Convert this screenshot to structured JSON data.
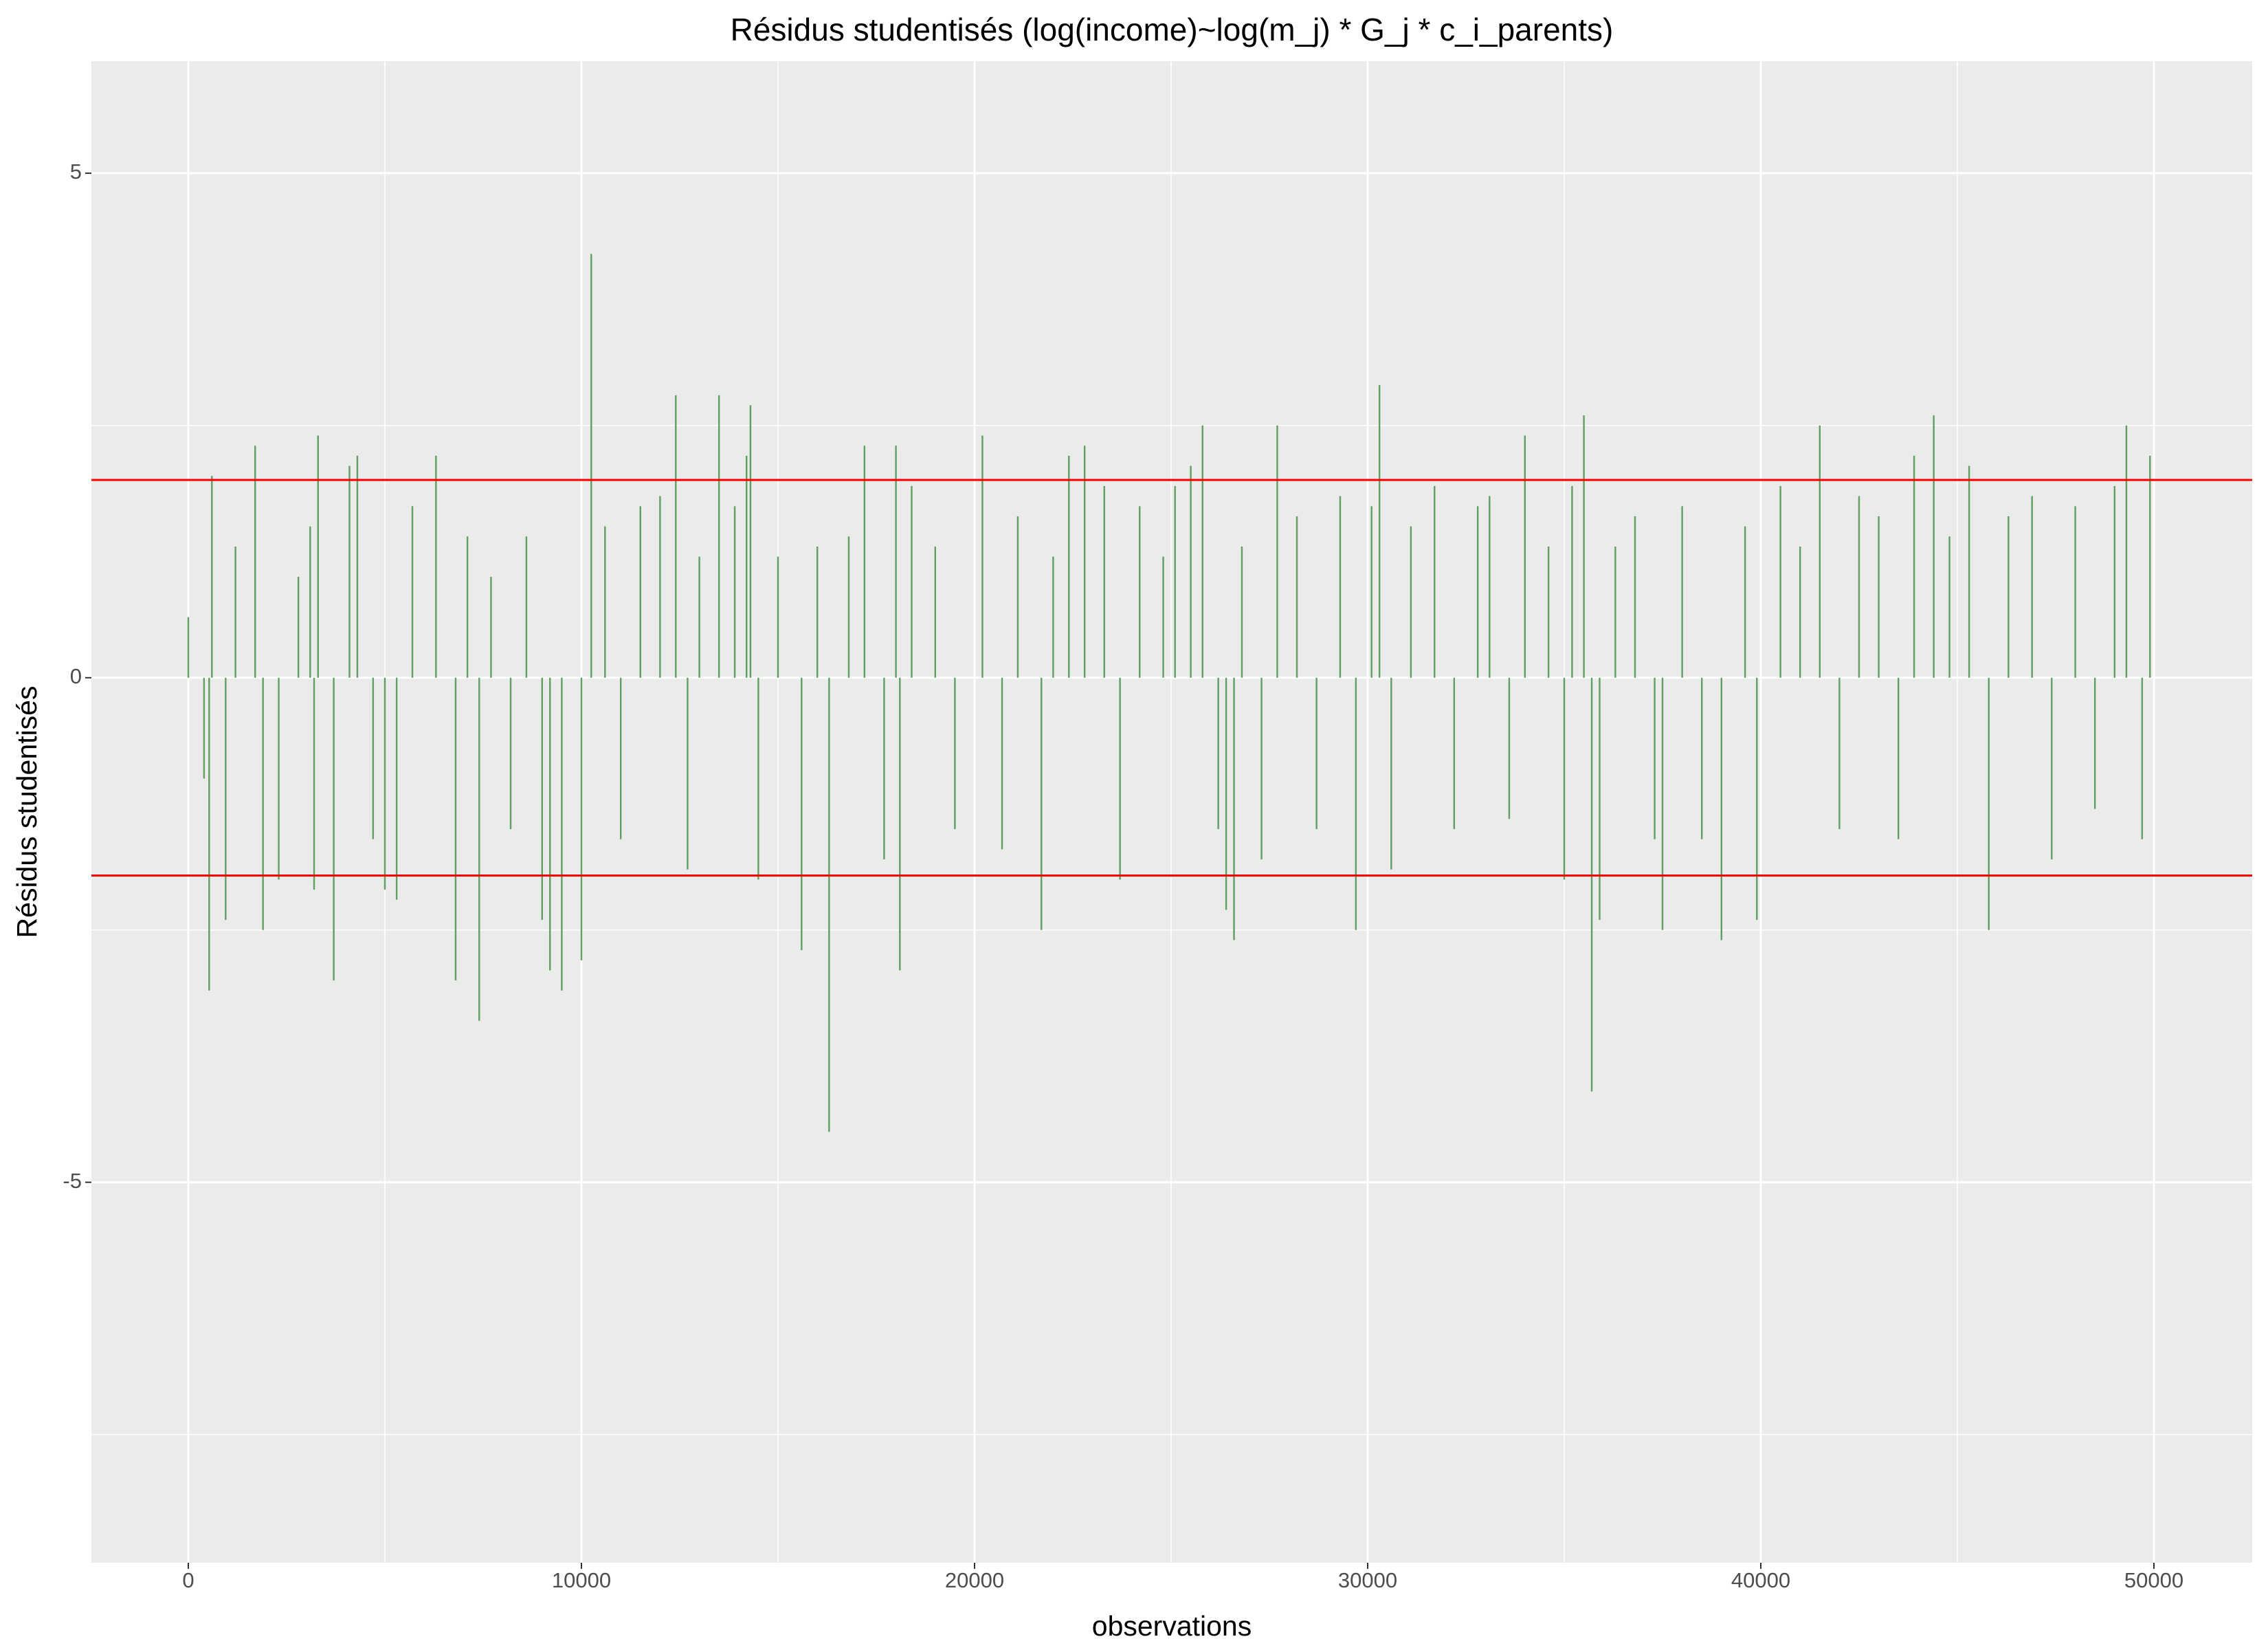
{
  "chart_data": {
    "type": "bar",
    "title": "Résidus studentisés (log(income)~log(m_j) * G_j * c_i_parents)",
    "x_label": "observations",
    "y_label": "Résidus studentisés",
    "color": "#5f9f5f",
    "x": [
      0,
      400,
      530,
      600,
      950,
      1200,
      1700,
      1900,
      2300,
      2800,
      3100,
      3200,
      3300,
      3700,
      4100,
      4300,
      4700,
      5000,
      5300,
      5700,
      6300,
      6800,
      7100,
      7400,
      7700,
      8200,
      8600,
      9000,
      9200,
      9500,
      10000,
      10250,
      10600,
      11000,
      11500,
      12000,
      12400,
      12700,
      13000,
      13500,
      13900,
      14200,
      14300,
      14500,
      15000,
      15600,
      16000,
      16300,
      16800,
      17200,
      17700,
      18000,
      18100,
      18400,
      19000,
      19500,
      20200,
      20700,
      21100,
      21700,
      22000,
      22400,
      22800,
      23300,
      23700,
      24200,
      24800,
      25100,
      25500,
      25800,
      26200,
      26400,
      26600,
      26800,
      27300,
      27700,
      28200,
      28700,
      29300,
      29700,
      30100,
      30300,
      30600,
      31100,
      31700,
      32200,
      32800,
      33100,
      33600,
      34000,
      34600,
      35000,
      35200,
      35500,
      35700,
      35900,
      36300,
      36800,
      37300,
      37500,
      38000,
      38500,
      39000,
      39600,
      39900,
      40500,
      41000,
      41500,
      42000,
      42500,
      43000,
      43500,
      43900,
      44400,
      44800,
      45300,
      45800,
      46300,
      46900,
      47400,
      48000,
      48500,
      49000,
      49300,
      49700,
      49900
    ],
    "values": [
      0.6,
      -1.0,
      -3.1,
      2.0,
      -2.4,
      1.3,
      2.3,
      -2.5,
      -2.0,
      1.0,
      1.5,
      -2.1,
      2.4,
      -3.0,
      2.1,
      2.2,
      -1.6,
      -2.1,
      -2.2,
      1.7,
      2.2,
      -3.0,
      1.4,
      -3.4,
      1.0,
      -1.5,
      1.4,
      -2.4,
      -2.9,
      -3.1,
      -2.8,
      4.2,
      1.5,
      -1.6,
      1.7,
      1.8,
      2.8,
      -1.9,
      1.2,
      2.8,
      1.7,
      2.2,
      2.7,
      -2.0,
      1.2,
      -2.7,
      1.3,
      -4.5,
      1.4,
      2.3,
      -1.8,
      2.3,
      -2.9,
      1.9,
      1.3,
      -1.5,
      2.4,
      -1.7,
      1.6,
      -2.5,
      1.2,
      2.2,
      2.3,
      1.9,
      -2.0,
      1.7,
      1.2,
      1.9,
      2.1,
      2.5,
      -1.5,
      -2.3,
      -2.6,
      1.3,
      -1.8,
      2.5,
      1.6,
      -1.5,
      1.8,
      -2.5,
      1.7,
      2.9,
      -1.9,
      1.5,
      1.9,
      -1.5,
      1.7,
      1.8,
      -1.4,
      2.4,
      1.3,
      -2.0,
      1.9,
      2.6,
      -4.1,
      -2.4,
      1.3,
      1.6,
      -1.6,
      -2.5,
      1.7,
      -1.6,
      -2.6,
      1.5,
      -2.4,
      1.9,
      1.3,
      2.5,
      -1.5,
      1.8,
      1.6,
      -1.6,
      2.2,
      2.6,
      1.4,
      2.1,
      -2.5,
      1.6,
      1.8,
      -1.8,
      1.7,
      -1.3,
      1.9,
      2.5,
      -1.6,
      2.2
    ],
    "hlines": [
      {
        "value": 1.96,
        "color": "#ff0000"
      },
      {
        "value": -1.96,
        "color": "#ff0000"
      }
    ],
    "xlim": [
      -2465,
      52500
    ],
    "xticks": [
      0,
      10000,
      20000,
      30000,
      40000,
      50000
    ],
    "xminor": [
      5000,
      15000,
      25000,
      35000,
      45000
    ],
    "ylim": [
      -8.77,
      6.11
    ],
    "yticks": [
      -5,
      0,
      5
    ],
    "yminor": [
      -7.5,
      -2.5,
      2.5
    ],
    "grid": true
  }
}
